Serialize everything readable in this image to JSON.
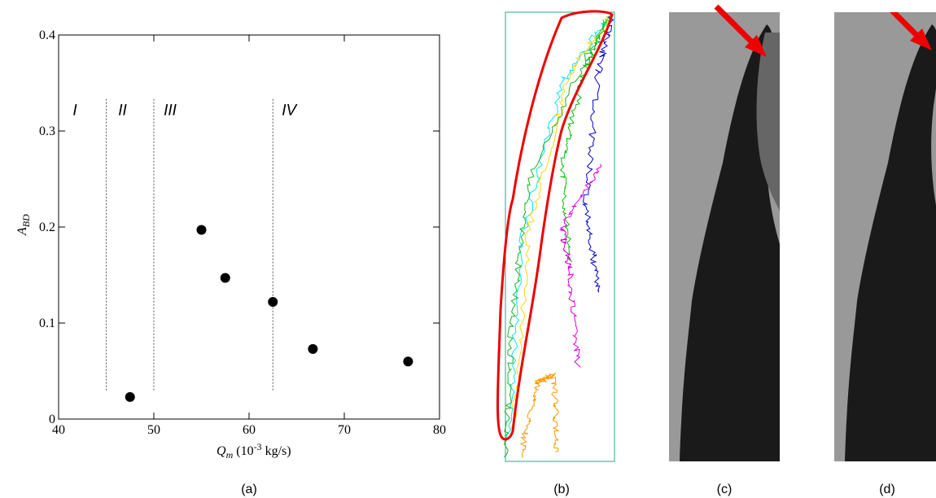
{
  "chart_data": {
    "type": "scatter",
    "xlabel": [
      "Q",
      "m",
      " (10",
      "-3",
      " kg/s)"
    ],
    "ylabel": [
      "A",
      "BD"
    ],
    "x": [
      47.5,
      55,
      57.5,
      62.5,
      66.7,
      76.7
    ],
    "values": [
      0.023,
      0.197,
      0.147,
      0.122,
      0.073,
      0.06
    ],
    "color": "#000000",
    "xlim": [
      40,
      80
    ],
    "ylim": [
      0,
      0.4
    ],
    "xticks": [
      40,
      50,
      60,
      70,
      80
    ],
    "yticks": [
      0,
      0.1,
      0.2,
      0.3,
      0.4
    ],
    "region_boundaries": [
      45,
      50,
      62.5
    ],
    "region_labels": [
      "I",
      "II",
      "III",
      "IV"
    ],
    "panel_labels": [
      "(a)",
      "(b)",
      "(c)",
      "(d)"
    ]
  }
}
